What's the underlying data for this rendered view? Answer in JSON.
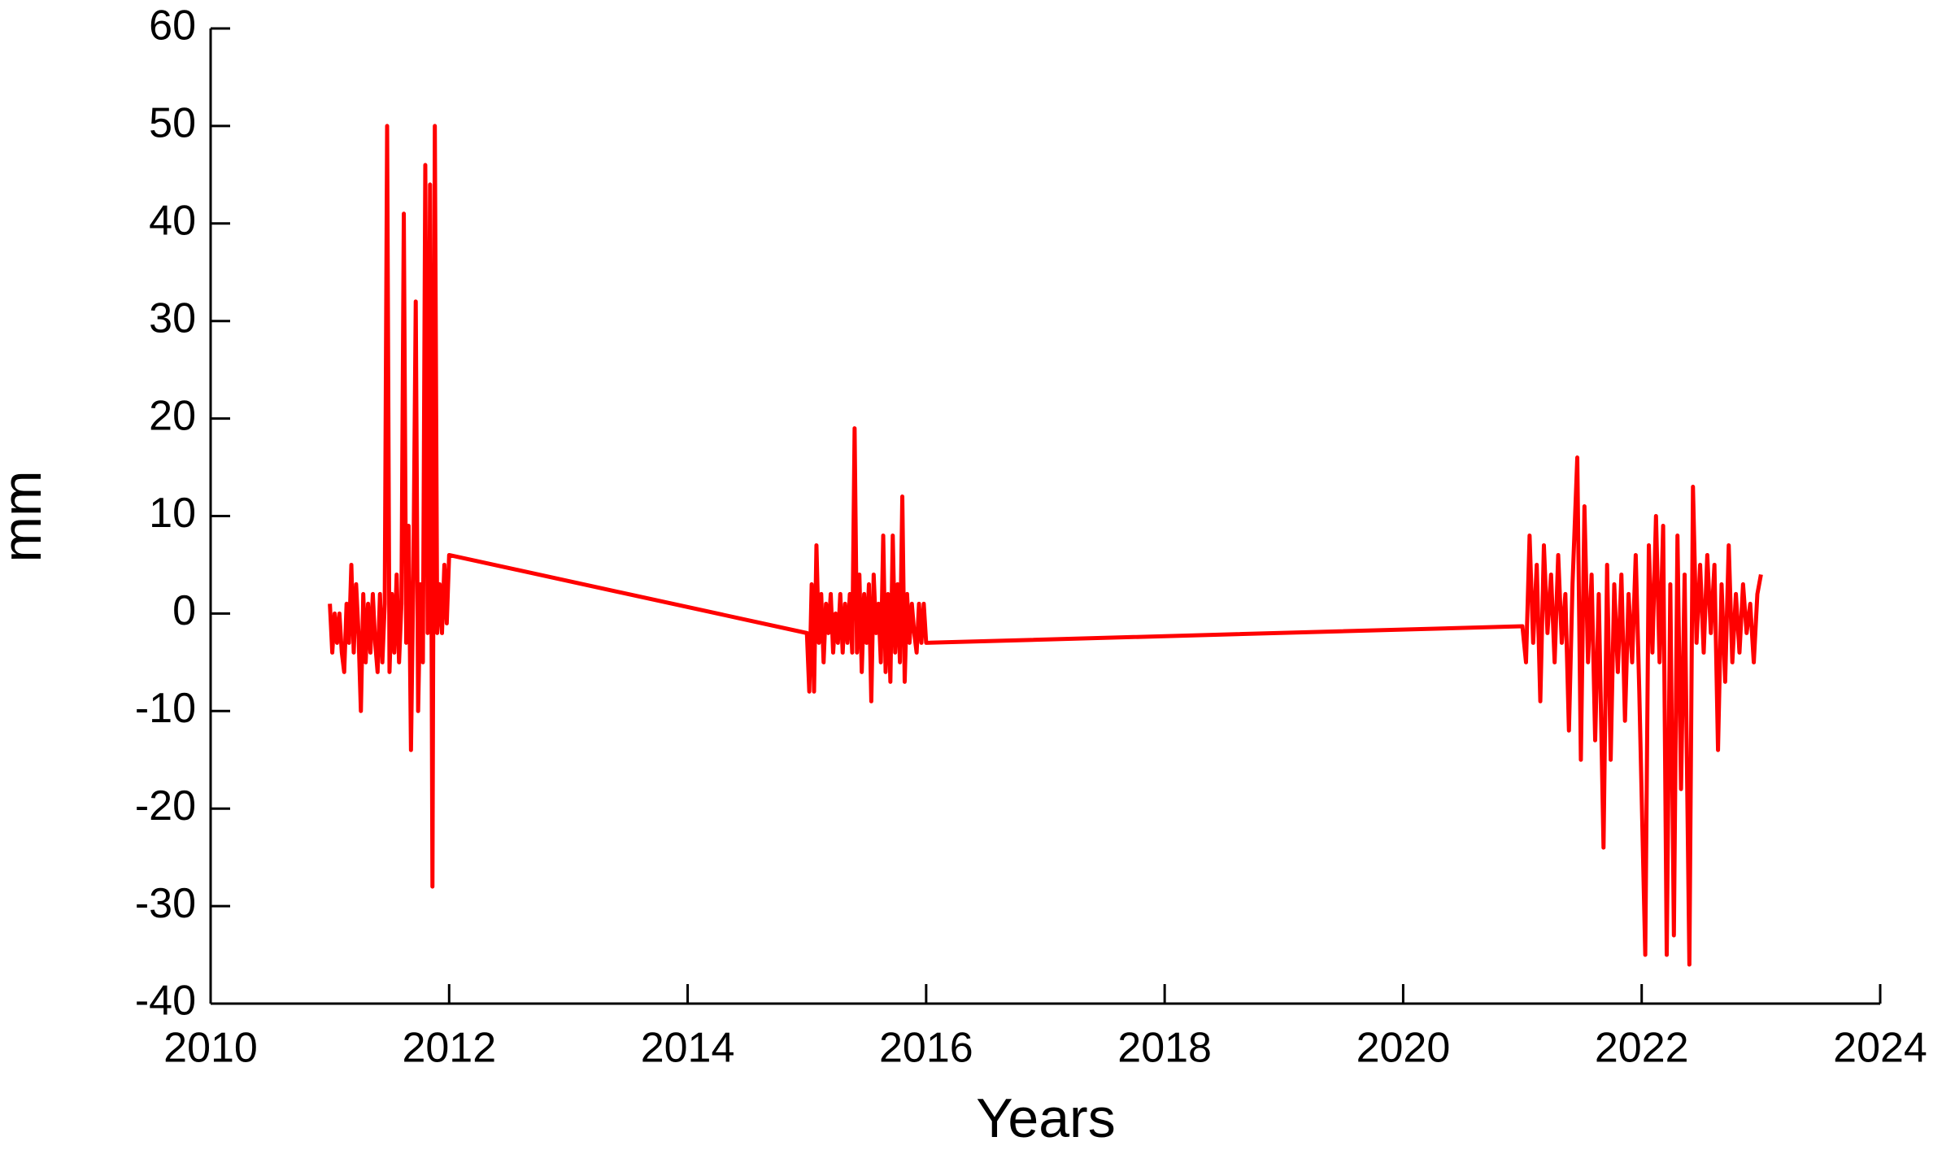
{
  "chart_data": {
    "type": "line",
    "x_label": "Years",
    "y_label": "mm",
    "xlim": [
      2010,
      2024
    ],
    "ylim": [
      -40,
      60
    ],
    "xticks": [
      2010,
      2012,
      2014,
      2016,
      2018,
      2020,
      2022,
      2024
    ],
    "yticks": [
      -40,
      -30,
      -20,
      -10,
      0,
      10,
      20,
      30,
      40,
      50,
      60
    ],
    "grid": false,
    "x": [
      2011.0,
      2011.02,
      2011.04,
      2011.06,
      2011.08,
      2011.1,
      2011.12,
      2011.14,
      2011.16,
      2011.18,
      2011.2,
      2011.22,
      2011.24,
      2011.26,
      2011.28,
      2011.3,
      2011.32,
      2011.34,
      2011.36,
      2011.38,
      2011.4,
      2011.42,
      2011.44,
      2011.46,
      2011.48,
      2011.5,
      2011.52,
      2011.54,
      2011.56,
      2011.58,
      2011.6,
      2011.62,
      2011.64,
      2011.66,
      2011.68,
      2011.7,
      2011.72,
      2011.74,
      2011.76,
      2011.78,
      2011.8,
      2011.82,
      2011.84,
      2011.86,
      2011.88,
      2011.9,
      2011.92,
      2011.94,
      2011.96,
      2011.98,
      2012.0,
      2015.0,
      2015.02,
      2015.04,
      2015.06,
      2015.08,
      2015.1,
      2015.12,
      2015.14,
      2015.16,
      2015.18,
      2015.2,
      2015.22,
      2015.24,
      2015.26,
      2015.28,
      2015.3,
      2015.32,
      2015.34,
      2015.36,
      2015.38,
      2015.4,
      2015.42,
      2015.44,
      2015.46,
      2015.48,
      2015.5,
      2015.52,
      2015.54,
      2015.56,
      2015.58,
      2015.6,
      2015.62,
      2015.64,
      2015.66,
      2015.68,
      2015.7,
      2015.72,
      2015.74,
      2015.76,
      2015.78,
      2015.8,
      2015.82,
      2015.84,
      2015.86,
      2015.88,
      2015.9,
      2015.92,
      2015.94,
      2015.96,
      2015.98,
      2016.0,
      2021.0,
      2021.03,
      2021.06,
      2021.09,
      2021.12,
      2021.15,
      2021.18,
      2021.21,
      2021.24,
      2021.27,
      2021.3,
      2021.33,
      2021.36,
      2021.39,
      2021.42,
      2021.46,
      2021.49,
      2021.52,
      2021.55,
      2021.58,
      2021.61,
      2021.64,
      2021.68,
      2021.71,
      2021.74,
      2021.77,
      2021.8,
      2021.83,
      2021.86,
      2021.89,
      2021.92,
      2021.95,
      2021.98,
      2022.03,
      2022.06,
      2022.09,
      2022.12,
      2022.15,
      2022.18,
      2022.21,
      2022.24,
      2022.27,
      2022.3,
      2022.33,
      2022.36,
      2022.4,
      2022.43,
      2022.46,
      2022.49,
      2022.52,
      2022.55,
      2022.58,
      2022.61,
      2022.64,
      2022.67,
      2022.7,
      2022.73,
      2022.76,
      2022.79,
      2022.82,
      2022.85,
      2022.88,
      2022.91,
      2022.94,
      2022.97,
      2023.0
    ],
    "series": [
      {
        "name": "mm",
        "color": "#ff0000",
        "values": [
          1,
          -4,
          0,
          -3,
          0,
          -4,
          -6,
          1,
          -3,
          5,
          -4,
          3,
          -2,
          -10,
          2,
          -5,
          1,
          -4,
          2,
          -3,
          -6,
          2,
          -5,
          1,
          50,
          -6,
          2,
          -4,
          4,
          -5,
          1,
          41,
          -3,
          9,
          -14,
          4,
          32,
          -10,
          3,
          -5,
          46,
          -2,
          44,
          -28,
          50,
          -2,
          3,
          -2,
          5,
          -1,
          6,
          -2,
          -8,
          3,
          -8,
          7,
          -3,
          2,
          -5,
          1,
          -2,
          2,
          -4,
          0,
          -3,
          2,
          -4,
          1,
          -3,
          2,
          -4,
          19,
          -4,
          4,
          -6,
          2,
          -3,
          3,
          -9,
          4,
          -2,
          1,
          -5,
          8,
          -6,
          2,
          -7,
          8,
          -4,
          3,
          -5,
          12,
          -7,
          2,
          -3,
          1,
          -2,
          -4,
          1,
          -3,
          1,
          -3,
          -1.3,
          -5,
          8,
          -3,
          5,
          -9,
          7,
          -2,
          4,
          -5,
          6,
          -3,
          2,
          -12,
          3,
          16,
          -15,
          11,
          -5,
          4,
          -13,
          2,
          -24,
          5,
          -15,
          3,
          -6,
          4,
          -11,
          2,
          -5,
          6,
          -8,
          -35,
          7,
          -4,
          10,
          -5,
          9,
          -35,
          3,
          -33,
          8,
          -18,
          4,
          -36,
          13,
          -3,
          5,
          -4,
          6,
          -2,
          5,
          -14,
          3,
          -7,
          7,
          -5,
          2,
          -4,
          3,
          -2,
          1,
          -5,
          2,
          4
        ]
      }
    ]
  }
}
